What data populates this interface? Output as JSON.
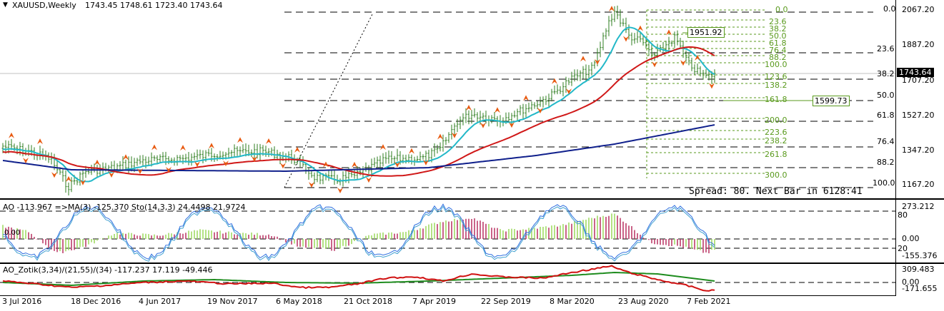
{
  "main": {
    "title": "XAUUSD,Weekly",
    "ohlc": "1743.45 1748.61 1723.40 1743.64",
    "spread_text": "Spread: 80. Next Bar in 6128:41",
    "price_tag": "1743.64",
    "box_label_1": "1951.92",
    "box_label_2": "1599.73",
    "price_axis": [
      "2067.20",
      "1887.20",
      "1707.20",
      "1527.20",
      "1347.20",
      "1167.20"
    ],
    "fib_right": [
      "0.0",
      "23.6",
      "38.2",
      "50.0",
      "61.8",
      "76.4",
      "88.2",
      "100.0"
    ],
    "fib_green": [
      "0.0",
      "23.6",
      "38.2",
      "50.0",
      "61.8",
      "76.4",
      "88.2",
      "100.0",
      "123.6",
      "138.2",
      "161.8",
      "200.0",
      "223.6",
      "238.2",
      "261.8",
      "300.0"
    ]
  },
  "ao_pane": {
    "title": "AO -113.967 =>MA(3) -125.370 Sto(14,3,3) 24.4498 21.9724",
    "left_label": "0.00",
    "axis": [
      "273.212",
      "80",
      "0.00",
      "20",
      "-155.376"
    ]
  },
  "zotik_pane": {
    "title": "AO_Zotik(3,34)/(21,55)/(34) -117.237 17.119 -49.446",
    "axis": [
      "309.483",
      "0.00",
      "-171.655"
    ]
  },
  "time_axis": [
    "3 Jul 2016",
    "18 Dec 2016",
    "4 Jun 2017",
    "19 Nov 2017",
    "6 May 2018",
    "21 Oct 2018",
    "7 Apr 2019",
    "22 Sep 2019",
    "8 Mar 2020",
    "23 Aug 2020",
    "7 Feb 2021"
  ],
  "colors": {
    "candles": "#2e7d1f",
    "ma_fast": "#22b8c8",
    "ma_mid": "#d01818",
    "ma_slow": "#10208c",
    "fractal": "#e85a10",
    "fib": "#5a9a1e",
    "ao_up": "#9ad85a",
    "ao_down": "#b83060",
    "sto_main": "#3070e0",
    "sto_signal": "#40a0d0",
    "zotik_green": "#1e8c1e",
    "zotik_red": "#d01010"
  },
  "icons": {
    "dropdown": "triangle-down-icon"
  }
}
